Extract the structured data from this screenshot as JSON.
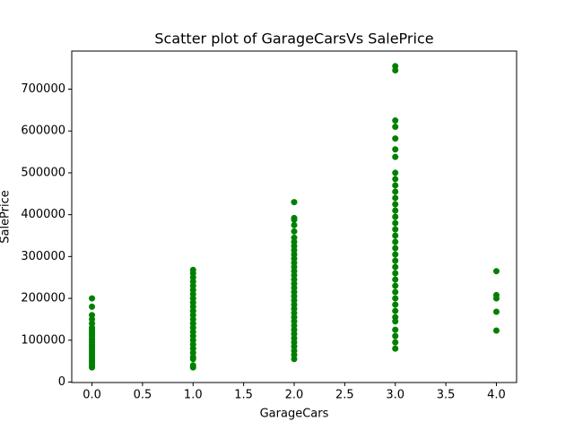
{
  "chart_data": {
    "type": "scatter",
    "title": "Scatter plot of GarageCarsVs SalePrice",
    "x_label": "GarageCars",
    "y_label": "SalePrice",
    "color": "#008000",
    "xlim": [
      -0.2,
      4.2
    ],
    "ylim": [
      -1100,
      791000
    ],
    "xticks": [
      {
        "value": 0,
        "label": "0.0"
      },
      {
        "value": 0.5,
        "label": "0.5"
      },
      {
        "value": 1,
        "label": "1.0"
      },
      {
        "value": 1.5,
        "label": "1.5"
      },
      {
        "value": 2,
        "label": "2.0"
      },
      {
        "value": 2.5,
        "label": "2.5"
      },
      {
        "value": 3,
        "label": "3.0"
      },
      {
        "value": 3.5,
        "label": "3.5"
      },
      {
        "value": 4,
        "label": "4.0"
      }
    ],
    "yticks": [
      0,
      100000,
      200000,
      300000,
      400000,
      500000,
      600000,
      700000
    ],
    "x": [
      0,
      0,
      0,
      0,
      0,
      0,
      0,
      0,
      0,
      0,
      0,
      0,
      0,
      0,
      0,
      0,
      0,
      0,
      0,
      0,
      0,
      0,
      0,
      0,
      0,
      1,
      1,
      1,
      1,
      1,
      1,
      1,
      1,
      1,
      1,
      1,
      1,
      1,
      1,
      1,
      1,
      1,
      1,
      1,
      1,
      1,
      1,
      1,
      1,
      1,
      2,
      2,
      2,
      2,
      2,
      2,
      2,
      2,
      2,
      2,
      2,
      2,
      2,
      2,
      2,
      2,
      2,
      2,
      2,
      2,
      2,
      2,
      2,
      2,
      2,
      2,
      2,
      2,
      2,
      2,
      2,
      2,
      2,
      2,
      2,
      3,
      3,
      3,
      3,
      3,
      3,
      3,
      3,
      3,
      3,
      3,
      3,
      3,
      3,
      3,
      3,
      3,
      3,
      3,
      3,
      3,
      3,
      3,
      3,
      3,
      3,
      3,
      3,
      3,
      3,
      3,
      3,
      3,
      3,
      3,
      3,
      4,
      4,
      4,
      4,
      4
    ],
    "values": [
      200000,
      180000,
      160000,
      150000,
      140000,
      130000,
      125000,
      120000,
      115000,
      110000,
      105000,
      100000,
      95000,
      90000,
      85000,
      80000,
      75000,
      70000,
      65000,
      60000,
      55000,
      50000,
      45000,
      40000,
      35000,
      268000,
      260000,
      250000,
      240000,
      230000,
      220000,
      210000,
      200000,
      190000,
      180000,
      170000,
      160000,
      150000,
      140000,
      130000,
      120000,
      110000,
      100000,
      90000,
      80000,
      70000,
      60000,
      55000,
      40000,
      35000,
      430000,
      392000,
      388000,
      375000,
      360000,
      345000,
      335000,
      325000,
      315000,
      305000,
      295000,
      285000,
      275000,
      265000,
      255000,
      245000,
      235000,
      225000,
      215000,
      205000,
      195000,
      185000,
      175000,
      165000,
      155000,
      145000,
      135000,
      125000,
      115000,
      105000,
      95000,
      85000,
      75000,
      65000,
      55000,
      755000,
      745000,
      625000,
      610000,
      582000,
      556000,
      538000,
      500000,
      485000,
      470000,
      455000,
      440000,
      425000,
      410000,
      395000,
      380000,
      365000,
      350000,
      335000,
      320000,
      305000,
      290000,
      275000,
      260000,
      245000,
      230000,
      215000,
      200000,
      185000,
      170000,
      155000,
      145000,
      125000,
      110000,
      95000,
      80000,
      265000,
      208000,
      200000,
      168000,
      123000
    ]
  }
}
